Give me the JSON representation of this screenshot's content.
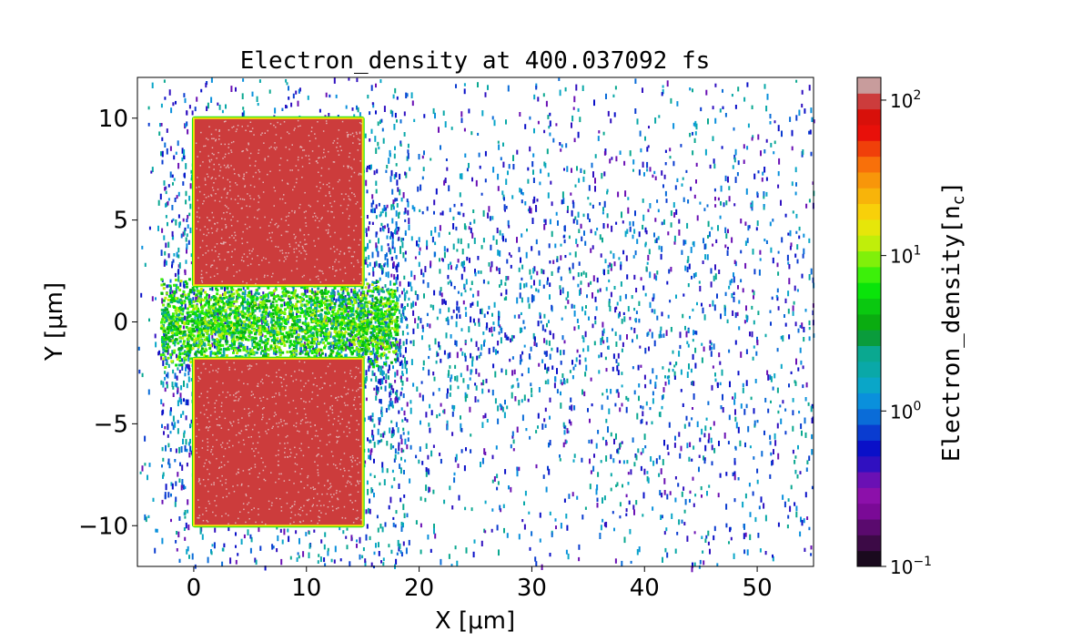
{
  "chart_data": {
    "type": "heatmap",
    "title": "Electron_density at 400.037092 fs",
    "xlabel_prefix": "X",
    "xlabel_unit": "[μm]",
    "ylabel_prefix": "Y",
    "ylabel_unit": "[μm]",
    "xlim": [
      -5,
      55
    ],
    "ylim": [
      -12,
      12
    ],
    "xticks": [
      0,
      10,
      20,
      30,
      40,
      50
    ],
    "xtick_labels": [
      "0",
      "10",
      "20",
      "30",
      "40",
      "50"
    ],
    "yticks": [
      -10,
      -5,
      0,
      5,
      10
    ],
    "ytick_labels": [
      "−10",
      "−5",
      "0",
      "5",
      "10"
    ],
    "colorbar": {
      "label_prefix": "Electron_density",
      "label_unit": "[n",
      "label_unit_sub": "c",
      "label_close": "]",
      "scale": "log",
      "range": [
        0.1,
        140
      ],
      "ticks": [
        0.1,
        1,
        10,
        100
      ],
      "tick_labels": [
        {
          "base": "10",
          "exp": "−1"
        },
        {
          "base": "10",
          "exp": "0"
        },
        {
          "base": "10",
          "exp": "1"
        },
        {
          "base": "10",
          "exp": "2"
        }
      ],
      "colors": [
        "#1a0a1e",
        "#3c0a46",
        "#5a0a6e",
        "#7a0a96",
        "#8c10aa",
        "#6a10b4",
        "#3010c0",
        "#0a10c8",
        "#0a3cd0",
        "#0a6cd8",
        "#0a90dc",
        "#0aa6c8",
        "#0aa8a8",
        "#0aa890",
        "#0a9c3c",
        "#0aac10",
        "#0ac810",
        "#0ae40a",
        "#3cf00a",
        "#80f00a",
        "#c0ee0a",
        "#e6e60a",
        "#f8d00a",
        "#f8b40a",
        "#f8960a",
        "#f8700a",
        "#f0400a",
        "#e8100a",
        "#d8100a",
        "#cc3c3c",
        "#c89c9c"
      ]
    },
    "regions": [
      {
        "name": "upper target block",
        "x": [
          0,
          15
        ],
        "y": [
          1.8,
          10
        ],
        "density": 100
      },
      {
        "name": "lower target block",
        "x": [
          0,
          15
        ],
        "y": [
          -10,
          -1.8
        ],
        "density": 100
      },
      {
        "name": "central channel plasma",
        "x": [
          -3,
          17
        ],
        "y": [
          -1.8,
          1.8
        ],
        "density": 8
      }
    ],
    "grid": false,
    "legend": "none"
  }
}
